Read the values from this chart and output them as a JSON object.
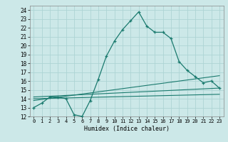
{
  "title": "",
  "xlabel": "Humidex (Indice chaleur)",
  "ylabel": "",
  "bg_color": "#cce8e8",
  "grid_color": "#add4d4",
  "line_color": "#1a7a6e",
  "xlim": [
    -0.5,
    23.5
  ],
  "ylim": [
    12,
    24.5
  ],
  "yticks": [
    12,
    13,
    14,
    15,
    16,
    17,
    18,
    19,
    20,
    21,
    22,
    23,
    24
  ],
  "xticks": [
    0,
    1,
    2,
    3,
    4,
    5,
    6,
    7,
    8,
    9,
    10,
    11,
    12,
    13,
    14,
    15,
    16,
    17,
    18,
    19,
    20,
    21,
    22,
    23
  ],
  "main_x": [
    0,
    1,
    2,
    3,
    4,
    5,
    6,
    7,
    8,
    9,
    10,
    11,
    12,
    13,
    14,
    15,
    16,
    17,
    18,
    19,
    20,
    21,
    22,
    23
  ],
  "main_y": [
    13.0,
    13.5,
    14.2,
    14.2,
    14.0,
    12.2,
    12.0,
    13.8,
    16.2,
    18.8,
    20.5,
    21.8,
    22.8,
    23.8,
    22.2,
    21.5,
    21.5,
    20.8,
    18.2,
    17.2,
    16.5,
    15.8,
    16.0,
    15.2
  ],
  "line1_x": [
    0,
    23
  ],
  "line1_y": [
    14.0,
    14.5
  ],
  "line2_x": [
    0,
    23
  ],
  "line2_y": [
    13.8,
    16.6
  ],
  "line3_x": [
    0,
    23
  ],
  "line3_y": [
    14.2,
    15.2
  ]
}
